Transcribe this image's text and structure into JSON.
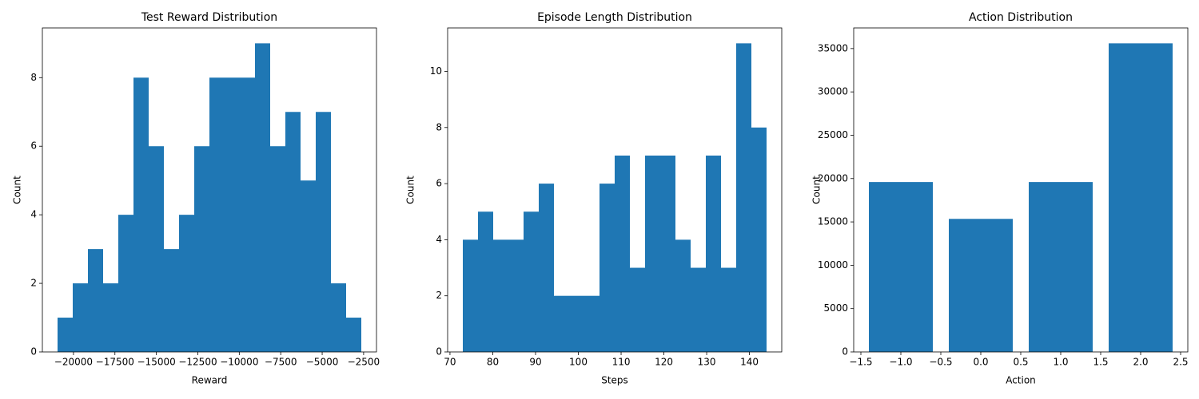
{
  "chart_data": [
    {
      "type": "histogram",
      "title": "Test Reward Distribution",
      "xlabel": "Reward",
      "ylabel": "Count",
      "color": "#1f77b4",
      "bins": [
        -20960,
        -20044,
        -19128,
        -18212,
        -17296,
        -16380,
        -15464,
        -14548,
        -13632,
        -12716,
        -11800,
        -10884,
        -9968,
        -9052,
        -8136,
        -7220,
        -6304,
        -5388,
        -4472,
        -3556,
        -2640
      ],
      "values": [
        1,
        2,
        3,
        2,
        4,
        8,
        6,
        3,
        4,
        6,
        8,
        8,
        8,
        9,
        6,
        7,
        5,
        7,
        2,
        1
      ],
      "xlim": [
        -21876,
        -1724
      ],
      "xticks": [
        {
          "value": -20000,
          "label": "−20000"
        },
        {
          "value": -17500,
          "label": "−17500"
        },
        {
          "value": -15000,
          "label": "−15000"
        },
        {
          "value": -12500,
          "label": "−12500"
        },
        {
          "value": -10000,
          "label": "−10000"
        },
        {
          "value": -7500,
          "label": "−7500"
        },
        {
          "value": -5000,
          "label": "−5000"
        },
        {
          "value": -2500,
          "label": "−2500"
        }
      ],
      "ylim": [
        0,
        9.45
      ],
      "yticks": [
        0,
        2,
        4,
        6,
        8
      ]
    },
    {
      "type": "histogram",
      "title": "Episode Length Distribution",
      "xlabel": "Steps",
      "ylabel": "Count",
      "color": "#1f77b4",
      "bins": [
        73,
        76.55,
        80.1,
        83.65,
        87.2,
        90.75,
        94.3,
        97.85,
        101.4,
        104.95,
        108.5,
        112.05,
        115.6,
        119.15,
        122.7,
        126.25,
        129.8,
        133.35,
        136.9,
        140.45,
        144
      ],
      "values": [
        4,
        5,
        4,
        4,
        5,
        6,
        2,
        2,
        2,
        6,
        7,
        3,
        7,
        7,
        4,
        3,
        7,
        3,
        11,
        8
      ],
      "xlim": [
        69.45,
        147.55
      ],
      "xticks": [
        70,
        80,
        90,
        100,
        110,
        120,
        130,
        140
      ],
      "ylim": [
        0,
        11.55
      ],
      "yticks": [
        0,
        2,
        4,
        6,
        8,
        10
      ]
    },
    {
      "type": "bar",
      "title": "Action Distribution",
      "xlabel": "Action",
      "ylabel": "Count",
      "color": "#1f77b4",
      "x": [
        -1,
        0,
        1,
        2
      ],
      "bar_width": 0.8,
      "values": [
        19600,
        15350,
        19600,
        35600
      ],
      "xlim": [
        -1.59,
        2.59
      ],
      "xticks": [
        {
          "value": -1.5,
          "label": "−1.5"
        },
        {
          "value": -1,
          "label": "−1.0"
        },
        {
          "value": -0.5,
          "label": "−0.5"
        },
        {
          "value": 0,
          "label": "0.0"
        },
        {
          "value": 0.5,
          "label": "0.5"
        },
        {
          "value": 1,
          "label": "1.0"
        },
        {
          "value": 1.5,
          "label": "1.5"
        },
        {
          "value": 2,
          "label": "2.0"
        },
        {
          "value": 2.5,
          "label": "2.5"
        }
      ],
      "ylim": [
        0,
        37380
      ],
      "yticks": [
        0,
        5000,
        10000,
        15000,
        20000,
        25000,
        30000,
        35000
      ]
    }
  ]
}
